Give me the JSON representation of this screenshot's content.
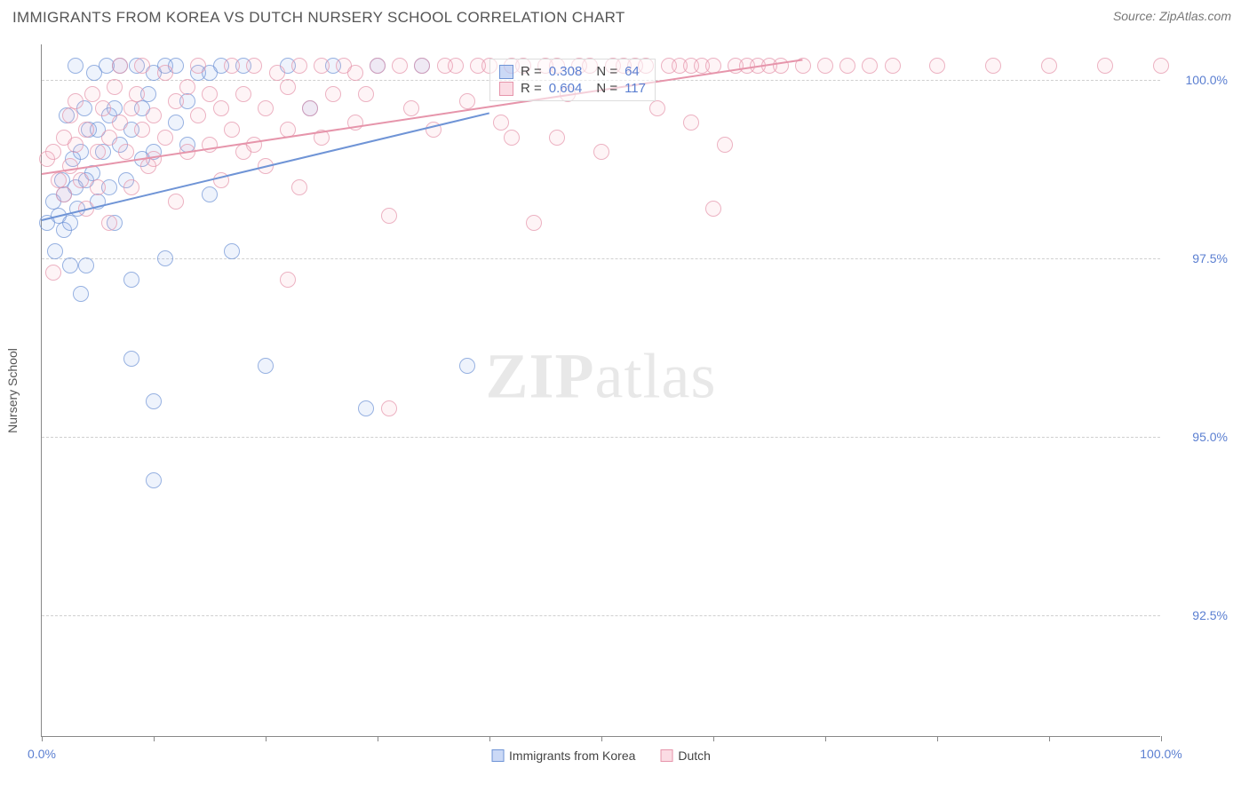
{
  "header": {
    "title": "IMMIGRANTS FROM KOREA VS DUTCH NURSERY SCHOOL CORRELATION CHART",
    "source": "Source: ZipAtlas.com"
  },
  "chart": {
    "type": "scatter",
    "ylabel": "Nursery School",
    "watermark": "ZIPatlas",
    "background_color": "#ffffff",
    "grid_color": "#d0d0d0",
    "axis_color": "#888888",
    "tick_label_color": "#5b7fd1",
    "xlim": [
      0,
      100
    ],
    "ylim": [
      90.8,
      100.5
    ],
    "xticks": [
      0,
      10,
      20,
      30,
      40,
      50,
      60,
      70,
      80,
      90,
      100
    ],
    "xtick_labels": {
      "0": "0.0%",
      "100": "100.0%"
    },
    "yticks": [
      92.5,
      95.0,
      97.5,
      100.0
    ],
    "ytick_labels": [
      "92.5%",
      "95.0%",
      "97.5%",
      "100.0%"
    ],
    "marker_radius": 9,
    "marker_stroke_width": 1.5,
    "marker_fill_opacity": 0.18,
    "series": [
      {
        "name": "Immigrants from Korea",
        "color_fill": "#7da0e8",
        "color_stroke": "#6f94d6",
        "trend": {
          "x0": 0,
          "y0": 98.05,
          "x1": 40,
          "y1": 99.55,
          "width": 2
        },
        "points": [
          [
            0.5,
            98.0
          ],
          [
            1,
            98.3
          ],
          [
            1.2,
            97.6
          ],
          [
            1.5,
            98.1
          ],
          [
            1.8,
            98.6
          ],
          [
            2,
            98.4
          ],
          [
            2,
            97.9
          ],
          [
            2.2,
            99.5
          ],
          [
            2.5,
            98.0
          ],
          [
            2.5,
            97.4
          ],
          [
            2.8,
            98.9
          ],
          [
            3,
            98.5
          ],
          [
            3,
            100.2
          ],
          [
            3.2,
            98.2
          ],
          [
            3.5,
            99.0
          ],
          [
            3.5,
            97.0
          ],
          [
            3.8,
            99.6
          ],
          [
            4,
            98.6
          ],
          [
            4,
            97.4
          ],
          [
            4.2,
            99.3
          ],
          [
            4.5,
            98.7
          ],
          [
            4.7,
            100.1
          ],
          [
            5,
            98.3
          ],
          [
            5,
            99.3
          ],
          [
            5.5,
            99.0
          ],
          [
            5.8,
            100.2
          ],
          [
            6,
            98.5
          ],
          [
            6,
            99.5
          ],
          [
            6.5,
            98.0
          ],
          [
            6.5,
            99.6
          ],
          [
            7,
            99.1
          ],
          [
            7,
            100.2
          ],
          [
            7.5,
            98.6
          ],
          [
            8,
            99.3
          ],
          [
            8,
            97.2
          ],
          [
            8.5,
            100.2
          ],
          [
            9,
            98.9
          ],
          [
            9,
            99.6
          ],
          [
            9.5,
            99.8
          ],
          [
            10,
            100.1
          ],
          [
            10,
            99.0
          ],
          [
            11,
            97.5
          ],
          [
            11,
            100.2
          ],
          [
            12,
            99.4
          ],
          [
            12,
            100.2
          ],
          [
            13,
            99.1
          ],
          [
            13,
            99.7
          ],
          [
            14,
            100.1
          ],
          [
            15,
            98.4
          ],
          [
            16,
            100.2
          ],
          [
            17,
            97.6
          ],
          [
            18,
            100.2
          ],
          [
            20,
            96.0
          ],
          [
            22,
            100.2
          ],
          [
            24,
            99.6
          ],
          [
            26,
            100.2
          ],
          [
            29,
            95.4
          ],
          [
            30,
            100.2
          ],
          [
            34,
            100.2
          ],
          [
            38,
            96.0
          ],
          [
            8,
            96.1
          ],
          [
            10,
            95.5
          ],
          [
            10,
            94.4
          ],
          [
            15,
            100.1
          ]
        ]
      },
      {
        "name": "Dutch",
        "color_fill": "#f4a8bb",
        "color_stroke": "#e695ab",
        "trend": {
          "x0": 0,
          "y0": 98.7,
          "x1": 68,
          "y1": 100.3,
          "width": 2
        },
        "points": [
          [
            0.5,
            98.9
          ],
          [
            1,
            99.0
          ],
          [
            1,
            97.3
          ],
          [
            1.5,
            98.6
          ],
          [
            2,
            99.2
          ],
          [
            2,
            98.4
          ],
          [
            2.5,
            98.8
          ],
          [
            2.5,
            99.5
          ],
          [
            3,
            99.1
          ],
          [
            3,
            99.7
          ],
          [
            3.5,
            98.6
          ],
          [
            4,
            99.3
          ],
          [
            4,
            98.2
          ],
          [
            4.5,
            99.8
          ],
          [
            5,
            99.0
          ],
          [
            5,
            98.5
          ],
          [
            5.5,
            99.6
          ],
          [
            6,
            99.2
          ],
          [
            6,
            98.0
          ],
          [
            6.5,
            99.9
          ],
          [
            7,
            99.4
          ],
          [
            7,
            100.2
          ],
          [
            7.5,
            99.0
          ],
          [
            8,
            99.6
          ],
          [
            8,
            98.5
          ],
          [
            8.5,
            99.8
          ],
          [
            9,
            99.3
          ],
          [
            9,
            100.2
          ],
          [
            9.5,
            98.8
          ],
          [
            10,
            99.5
          ],
          [
            10,
            98.9
          ],
          [
            11,
            100.1
          ],
          [
            11,
            99.2
          ],
          [
            12,
            99.7
          ],
          [
            12,
            98.3
          ],
          [
            13,
            99.9
          ],
          [
            13,
            99.0
          ],
          [
            14,
            99.5
          ],
          [
            14,
            100.2
          ],
          [
            15,
            99.1
          ],
          [
            15,
            99.8
          ],
          [
            16,
            98.6
          ],
          [
            16,
            99.6
          ],
          [
            17,
            100.2
          ],
          [
            17,
            99.3
          ],
          [
            18,
            99.0
          ],
          [
            18,
            99.8
          ],
          [
            19,
            100.2
          ],
          [
            19,
            99.1
          ],
          [
            20,
            99.6
          ],
          [
            20,
            98.8
          ],
          [
            21,
            100.1
          ],
          [
            22,
            99.3
          ],
          [
            22,
            99.9
          ],
          [
            23,
            100.2
          ],
          [
            23,
            98.5
          ],
          [
            24,
            99.6
          ],
          [
            25,
            100.2
          ],
          [
            25,
            99.2
          ],
          [
            26,
            99.8
          ],
          [
            27,
            100.2
          ],
          [
            28,
            99.4
          ],
          [
            28,
            100.1
          ],
          [
            29,
            99.8
          ],
          [
            30,
            100.2
          ],
          [
            31,
            98.1
          ],
          [
            32,
            100.2
          ],
          [
            33,
            99.6
          ],
          [
            34,
            100.2
          ],
          [
            35,
            99.3
          ],
          [
            36,
            100.2
          ],
          [
            37,
            100.2
          ],
          [
            38,
            99.7
          ],
          [
            39,
            100.2
          ],
          [
            40,
            100.2
          ],
          [
            41,
            99.4
          ],
          [
            42,
            100.2
          ],
          [
            43,
            100.2
          ],
          [
            44,
            98.0
          ],
          [
            45,
            100.2
          ],
          [
            46,
            100.2
          ],
          [
            47,
            99.8
          ],
          [
            48,
            100.2
          ],
          [
            49,
            100.2
          ],
          [
            50,
            99.0
          ],
          [
            51,
            100.2
          ],
          [
            52,
            100.2
          ],
          [
            53,
            100.2
          ],
          [
            54,
            100.2
          ],
          [
            55,
            99.6
          ],
          [
            56,
            100.2
          ],
          [
            57,
            100.2
          ],
          [
            58,
            100.2
          ],
          [
            59,
            100.2
          ],
          [
            60,
            100.2
          ],
          [
            61,
            99.1
          ],
          [
            62,
            100.2
          ],
          [
            63,
            100.2
          ],
          [
            64,
            100.2
          ],
          [
            65,
            100.2
          ],
          [
            66,
            100.2
          ],
          [
            68,
            100.2
          ],
          [
            70,
            100.2
          ],
          [
            72,
            100.2
          ],
          [
            74,
            100.2
          ],
          [
            76,
            100.2
          ],
          [
            80,
            100.2
          ],
          [
            85,
            100.2
          ],
          [
            90,
            100.2
          ],
          [
            95,
            100.2
          ],
          [
            100,
            100.2
          ],
          [
            22,
            97.2
          ],
          [
            31,
            95.4
          ],
          [
            42,
            99.2
          ],
          [
            58,
            99.4
          ],
          [
            60,
            98.2
          ],
          [
            46,
            99.2
          ]
        ]
      }
    ],
    "stats_box": {
      "left_pct": 40,
      "top_y": 100.3,
      "rows": [
        {
          "swatch_fill": "#7da0e8",
          "swatch_stroke": "#6f94d6",
          "r_label": "R =",
          "r_value": "0.308",
          "n_label": "N =",
          "n_value": "64"
        },
        {
          "swatch_fill": "#f4a8bb",
          "swatch_stroke": "#e695ab",
          "r_label": "R =",
          "r_value": "0.604",
          "n_label": "N =",
          "n_value": "117"
        }
      ]
    },
    "legend": [
      {
        "label": "Immigrants from Korea",
        "fill": "#7da0e8",
        "stroke": "#6f94d6"
      },
      {
        "label": "Dutch",
        "fill": "#f4a8bb",
        "stroke": "#e695ab"
      }
    ]
  }
}
